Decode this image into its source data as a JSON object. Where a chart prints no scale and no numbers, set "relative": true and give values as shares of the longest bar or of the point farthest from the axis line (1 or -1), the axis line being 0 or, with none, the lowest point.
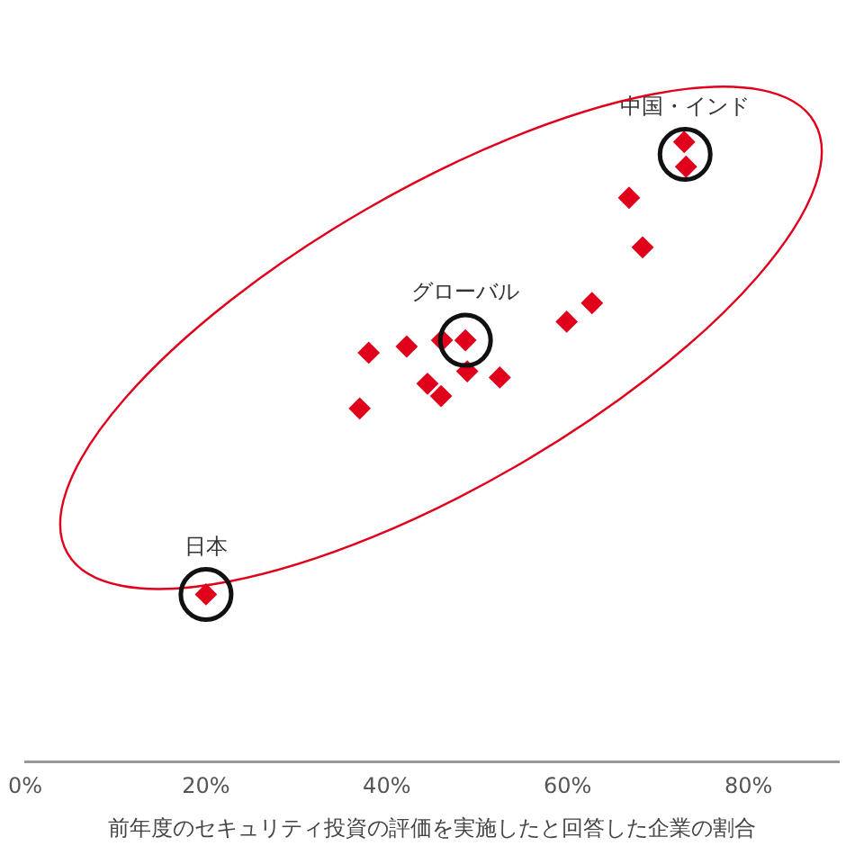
{
  "chart_data": {
    "type": "scatter",
    "relative": true,
    "xlabel": "前年度のセキュリティ投資の評価を実施したと回答した企業の割合",
    "xlim": [
      0,
      90
    ],
    "xticks": [
      {
        "value": 0,
        "label": "0%"
      },
      {
        "value": 20,
        "label": "20%"
      },
      {
        "value": 40,
        "label": "40%"
      },
      {
        "value": 60,
        "label": "60%"
      },
      {
        "value": 80,
        "label": "80%"
      }
    ],
    "marker": "diamond",
    "grid": false,
    "legend": false,
    "series": [
      {
        "color": "#e0001b",
        "x": [
          20,
          72.9,
          73.1,
          66.8,
          68.3,
          62.7,
          59.9,
          38.0,
          42.2,
          46.1,
          48.7,
          48.9,
          52.5,
          44.5,
          46.0,
          37.0
        ],
        "values": [
          0.27,
          1.0,
          0.96,
          0.91,
          0.83,
          0.74,
          0.71,
          0.66,
          0.67,
          0.68,
          0.68,
          0.63,
          0.62,
          0.61,
          0.59,
          0.57
        ]
      }
    ],
    "annotations": [
      {
        "text": "日本",
        "x": 20,
        "y": 0.27
      },
      {
        "text": "グローバル",
        "x": 48.7,
        "y": 0.68
      },
      {
        "text": "中国・インド",
        "x": 73,
        "y": 0.98
      }
    ]
  }
}
